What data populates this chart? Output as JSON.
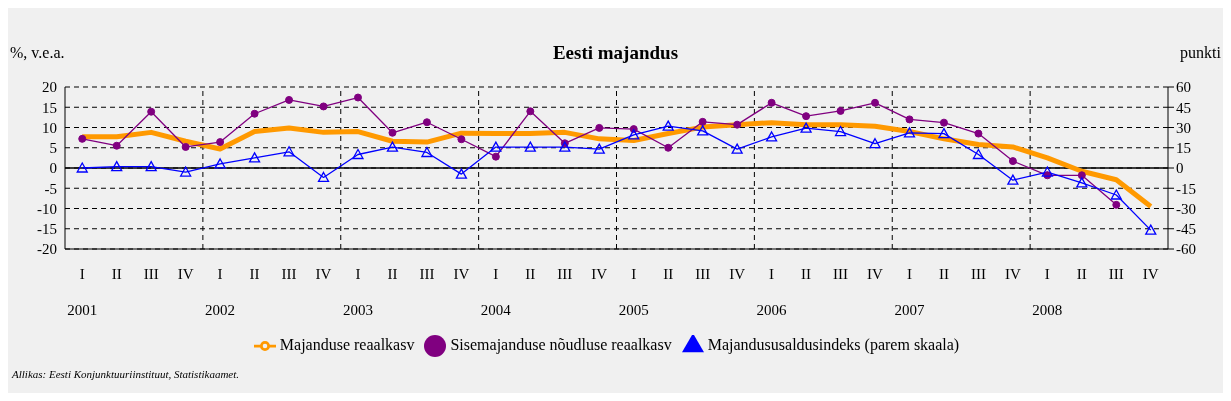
{
  "chart_data": {
    "type": "line",
    "title": "Eesti majandus",
    "ylabel": "%, v.e.a.",
    "y2label": "punkti",
    "categories": [
      "I\n2001",
      "II",
      "III",
      "IV",
      "I\n2002",
      "II",
      "III",
      "IV",
      "I\n2003",
      "II",
      "III",
      "IV",
      "I\n2004",
      "II",
      "III",
      "IV",
      "I\n2005",
      "II",
      "III",
      "IV",
      "I\n2006",
      "II",
      "III",
      "IV",
      "I\n2007",
      "II",
      "III",
      "IV",
      "I\n2008",
      "II",
      "III",
      "IV"
    ],
    "series": [
      {
        "name": "Majanduse reaalkasv",
        "color": "#ff9900",
        "marker": "none",
        "values": [
          7.7,
          7.7,
          8.8,
          6.6,
          4.7,
          9,
          9.9,
          8.8,
          9,
          6.6,
          6.4,
          8.6,
          8.5,
          8.5,
          8.8,
          7.2,
          6.8,
          8.5,
          10.1,
          10.7,
          11.2,
          10.7,
          10.7,
          10.3,
          9,
          7.2,
          5.8,
          5.2,
          2.5,
          -0.8,
          -2.9,
          -9.5
        ]
      },
      {
        "name": "Sisemajanduse nõudluse reaalkasv",
        "color": "#800080",
        "marker": "circle",
        "values": [
          7.2,
          5.5,
          13.9,
          5.2,
          6.4,
          13.4,
          16.8,
          15.2,
          17.4,
          8.7,
          11.3,
          7.1,
          2.8,
          14,
          6.1,
          9.9,
          9.6,
          5,
          11.4,
          10.7,
          16.1,
          12.8,
          14.1,
          16.1,
          12,
          11.2,
          8.5,
          1.7,
          -1.8,
          -1.8,
          -9.1,
          null
        ]
      },
      {
        "name": "Majandususaldusindeks (parem skaala)",
        "color": "#0000ff",
        "marker": "triangle",
        "axis": "y2",
        "values": [
          0,
          1,
          1,
          -3,
          3,
          7.5,
          12,
          -7,
          10,
          15.5,
          11.5,
          -4.5,
          15.5,
          15.5,
          15.5,
          14,
          24.5,
          31,
          27.5,
          14,
          23,
          29.5,
          27,
          18,
          26,
          25.5,
          10,
          -9,
          -3,
          -11,
          -20,
          -46
        ]
      }
    ],
    "ylim": [
      -20,
      20
    ],
    "yticks": [
      -20,
      -15,
      -10,
      -5,
      0,
      5,
      10,
      15,
      20
    ],
    "y2lim": [
      -60,
      60
    ],
    "y2ticks": [
      -60,
      -45,
      -30,
      -15,
      0,
      15,
      30,
      45,
      60
    ],
    "grid": "y",
    "legend": "bottom",
    "annotations": [
      "Allikas: Eesti Konjunktuuriinstituut, Statistikaamet."
    ]
  }
}
